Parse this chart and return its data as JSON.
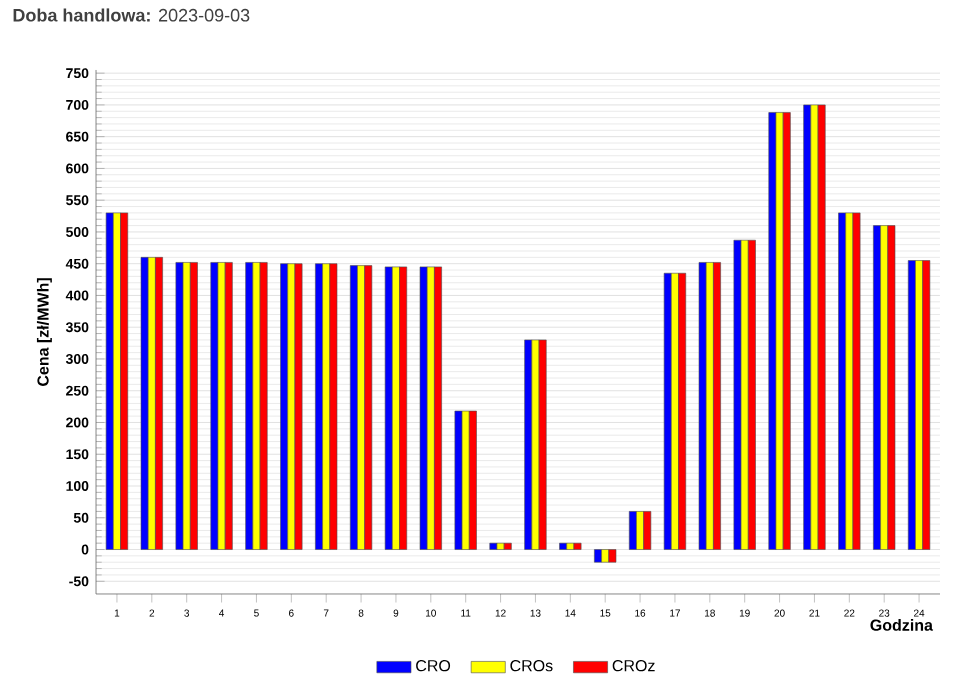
{
  "chart_data": {
    "type": "bar",
    "title": "**Doba handlowa:** 2023-09-03",
    "xlabel": "Godzina",
    "ylabel": "Cena [zł/MWh]",
    "categories": [
      "1",
      "2",
      "3",
      "4",
      "5",
      "6",
      "7",
      "8",
      "9",
      "10",
      "11",
      "12",
      "13",
      "14",
      "15",
      "16",
      "17",
      "18",
      "19",
      "20",
      "21",
      "22",
      "23",
      "24"
    ],
    "series": [
      {
        "name": "CRO",
        "color": "#0000ff",
        "values": [
          530,
          460,
          452,
          452,
          452,
          450,
          450,
          447,
          445,
          445,
          218,
          10,
          330,
          10,
          -20,
          60,
          435,
          452,
          487,
          688,
          700,
          530,
          510,
          455
        ]
      },
      {
        "name": "CROs",
        "color": "#ffff00",
        "values": [
          530,
          460,
          452,
          452,
          452,
          450,
          450,
          447,
          445,
          445,
          218,
          10,
          330,
          10,
          -20,
          60,
          435,
          452,
          487,
          688,
          700,
          530,
          510,
          455
        ]
      },
      {
        "name": "CROz",
        "color": "#ff0000",
        "values": [
          530,
          460,
          452,
          452,
          452,
          450,
          450,
          447,
          445,
          445,
          218,
          10,
          330,
          10,
          -20,
          60,
          435,
          452,
          487,
          688,
          700,
          530,
          510,
          455
        ]
      }
    ],
    "ylim": [
      -70,
      755
    ],
    "yticks": [
      -50,
      0,
      50,
      100,
      150,
      200,
      250,
      300,
      350,
      400,
      450,
      500,
      550,
      600,
      650,
      700,
      750
    ],
    "grid": "y",
    "legend": "bottom"
  }
}
